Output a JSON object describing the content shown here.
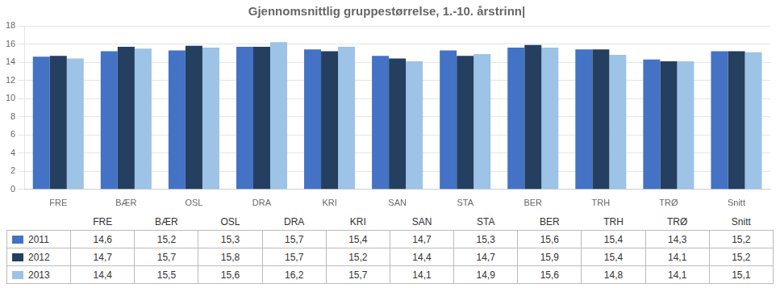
{
  "chart_data": {
    "type": "bar",
    "title": "Gjennomsnittlig gruppestørrelse, 1.-10. årstrinn|",
    "categories": [
      "FRE",
      "BÆR",
      "OSL",
      "DRA",
      "KRI",
      "SAN",
      "STA",
      "BER",
      "TRH",
      "TRØ",
      "Snitt"
    ],
    "series": [
      {
        "name": "2011",
        "color": "#4472C4",
        "values": [
          14.6,
          15.2,
          15.3,
          15.7,
          15.4,
          14.7,
          15.3,
          15.6,
          15.4,
          14.3,
          15.2
        ],
        "value_labels": [
          "14,6",
          "15,2",
          "15,3",
          "15,7",
          "15,4",
          "14,7",
          "15,3",
          "15,6",
          "15,4",
          "14,3",
          "15,2"
        ]
      },
      {
        "name": "2012",
        "color": "#243F60",
        "values": [
          14.7,
          15.7,
          15.8,
          15.7,
          15.2,
          14.4,
          14.7,
          15.9,
          15.4,
          14.1,
          15.2
        ],
        "value_labels": [
          "14,7",
          "15,7",
          "15,8",
          "15,7",
          "15,2",
          "14,4",
          "14,7",
          "15,9",
          "15,4",
          "14,1",
          "15,2"
        ]
      },
      {
        "name": "2013",
        "color": "#9DC3E6",
        "values": [
          14.4,
          15.5,
          15.6,
          16.2,
          15.7,
          14.1,
          14.9,
          15.6,
          14.8,
          14.1,
          15.1
        ],
        "value_labels": [
          "14,4",
          "15,5",
          "15,6",
          "16,2",
          "15,7",
          "14,1",
          "14,9",
          "15,6",
          "14,8",
          "14,1",
          "15,1"
        ]
      }
    ],
    "ylim": [
      0,
      18
    ],
    "yticks": [
      0,
      2,
      4,
      6,
      8,
      10,
      12,
      14,
      16,
      18
    ],
    "grid": true
  }
}
